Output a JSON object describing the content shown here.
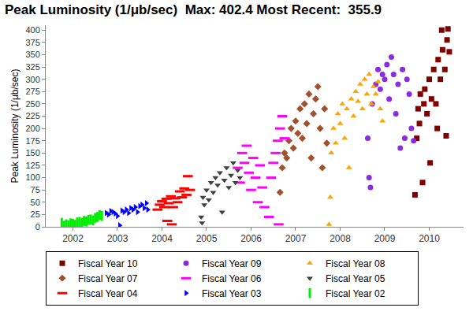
{
  "chart_data": {
    "type": "scatter",
    "title": "Peak Luminosity (1/μb/sec)  Max: 402.4 Most Recent:  355.9",
    "y_label": "Peak Luminosity (1/μb/sec)",
    "xlim": [
      2001.39,
      2010.77
    ],
    "xticks": [
      2002,
      2003,
      2004,
      2005,
      2006,
      2007,
      2008,
      2009,
      2010
    ],
    "ylim": [
      0,
      410
    ],
    "yticks": [
      0,
      25,
      50,
      75,
      100,
      125,
      150,
      175,
      200,
      225,
      250,
      275,
      300,
      325,
      350,
      375,
      400
    ],
    "grid": false,
    "legend": "bottom",
    "series": [
      {
        "name": "Fiscal Year 10",
        "color": "#800000",
        "marker": "square",
        "x": [
          2009.68,
          2009.72,
          2009.75,
          2009.78,
          2009.8,
          2009.85,
          2009.88,
          2009.9,
          2009.95,
          2010.0,
          2010.02,
          2010.05,
          2010.1,
          2010.15,
          2010.18,
          2010.2,
          2010.25,
          2010.28,
          2010.3,
          2010.35,
          2010.38,
          2010.4,
          2010.42,
          2010.45
        ],
        "values": [
          65,
          180,
          240,
          210,
          270,
          90,
          250,
          280,
          230,
          300,
          130,
          260,
          320,
          250,
          200,
          340,
          300,
          400,
          360,
          320,
          185,
          380,
          402.4,
          355.9
        ]
      },
      {
        "name": "Fiscal Year 09",
        "color": "#8a2be2",
        "marker": "circle",
        "x": [
          2008.62,
          2008.65,
          2008.68,
          2008.72,
          2008.8,
          2008.85,
          2008.9,
          2008.95,
          2009.0,
          2009.05,
          2009.1,
          2009.15,
          2009.2,
          2009.25,
          2009.3,
          2009.35,
          2009.4,
          2009.45,
          2009.5,
          2009.55,
          2009.6,
          2009.65
        ],
        "values": [
          180,
          100,
          80,
          250,
          290,
          320,
          280,
          310,
          300,
          330,
          260,
          345,
          310,
          230,
          290,
          160,
          320,
          180,
          300,
          270,
          200,
          175
        ]
      },
      {
        "name": "Fiscal Year 08",
        "color": "#ffa500",
        "marker": "triangle-up",
        "x": [
          2007.75,
          2007.78,
          2007.8,
          2007.85,
          2007.9,
          2007.95,
          2008.0,
          2008.05,
          2008.1,
          2008.15,
          2008.2,
          2008.25,
          2008.3,
          2008.35,
          2008.4,
          2008.45,
          2008.5,
          2008.55,
          2008.6,
          2008.65,
          2008.7,
          2008.75,
          2008.8,
          2008.85,
          2008.9,
          2008.95
        ],
        "values": [
          5,
          60,
          150,
          200,
          170,
          230,
          210,
          250,
          180,
          240,
          120,
          260,
          225,
          275,
          255,
          290,
          240,
          300,
          270,
          310,
          250,
          285,
          270,
          295,
          240,
          215
        ]
      },
      {
        "name": "Fiscal Year 07",
        "color": "#a0522d",
        "marker": "diamond",
        "x": [
          2006.65,
          2006.7,
          2006.75,
          2006.8,
          2006.85,
          2006.9,
          2006.95,
          2007.0,
          2007.05,
          2007.1,
          2007.15,
          2007.2,
          2007.25,
          2007.3,
          2007.35,
          2007.4,
          2007.45,
          2007.5,
          2007.55,
          2007.6,
          2007.65,
          2007.7
        ],
        "values": [
          70,
          120,
          150,
          140,
          175,
          200,
          160,
          215,
          190,
          240,
          180,
          250,
          210,
          270,
          140,
          230,
          260,
          285,
          200,
          120,
          240,
          170
        ]
      },
      {
        "name": "Fiscal Year 06",
        "color": "#ff00ff",
        "marker": "dash",
        "x": [
          2005.7,
          2005.75,
          2005.8,
          2005.85,
          2005.9,
          2005.95,
          2006.0,
          2006.05,
          2006.1,
          2006.15,
          2006.2,
          2006.25,
          2006.3,
          2006.4,
          2006.45,
          2006.5,
          2006.55,
          2006.6,
          2006.62,
          2006.65,
          2006.7,
          2006.75
        ],
        "values": [
          120,
          90,
          150,
          130,
          165,
          110,
          75,
          140,
          100,
          50,
          125,
          80,
          40,
          20,
          100,
          130,
          150,
          175,
          5,
          200,
          225,
          180
        ]
      },
      {
        "name": "Fiscal Year 05",
        "color": "#404040",
        "marker": "triangle-down",
        "x": [
          2004.88,
          2004.9,
          2004.92,
          2004.95,
          2005.0,
          2005.05,
          2005.1,
          2005.15,
          2005.2,
          2005.25,
          2005.3,
          2005.35,
          2005.4,
          2005.45,
          2005.5,
          2005.55,
          2005.6,
          2005.65,
          2005.7,
          2005.75
        ],
        "values": [
          20,
          8,
          60,
          45,
          75,
          55,
          90,
          70,
          100,
          85,
          110,
          30,
          95,
          120,
          80,
          105,
          130,
          90,
          115,
          100
        ]
      },
      {
        "name": "Fiscal Year 04",
        "color": "#ff0000",
        "marker": "dash",
        "x": [
          2003.9,
          2003.95,
          2004.0,
          2004.05,
          2004.1,
          2004.12,
          2004.15,
          2004.2,
          2004.22,
          2004.25,
          2004.3,
          2004.35,
          2004.4,
          2004.45,
          2004.5,
          2004.55,
          2004.58,
          2004.63
        ],
        "values": [
          35,
          45,
          52,
          40,
          57,
          12,
          48,
          62,
          5,
          40,
          58,
          50,
          72,
          60,
          78,
          65,
          103,
          75
        ]
      },
      {
        "name": "Fiscal Year 03",
        "color": "#0000ff",
        "marker": "triangle-right",
        "x": [
          2002.75,
          2002.8,
          2002.85,
          2002.9,
          2002.95,
          2003.0,
          2003.05,
          2003.1,
          2003.15,
          2003.2,
          2003.25,
          2003.3,
          2003.35,
          2003.4,
          2003.45,
          2003.5,
          2003.55,
          2003.6,
          2003.65,
          2003.68
        ],
        "values": [
          28,
          25,
          32,
          30,
          27,
          22,
          3,
          33,
          30,
          35,
          28,
          38,
          35,
          40,
          30,
          42,
          45,
          38,
          48,
          35
        ]
      },
      {
        "name": "Fiscal Year 02",
        "color": "#00ee00",
        "marker": "vertical-bar",
        "x": [
          2001.75,
          2001.8,
          2001.85,
          2001.9,
          2001.95,
          2002.0,
          2002.05,
          2002.1,
          2002.15,
          2002.2,
          2002.25,
          2002.3,
          2002.35,
          2002.4,
          2002.45,
          2002.5,
          2002.55,
          2002.6,
          2002.65
        ],
        "values": [
          8,
          2,
          5,
          3,
          7,
          6,
          4,
          9,
          10,
          8,
          12,
          11,
          14,
          15,
          13,
          18,
          20,
          24,
          22
        ]
      }
    ]
  }
}
